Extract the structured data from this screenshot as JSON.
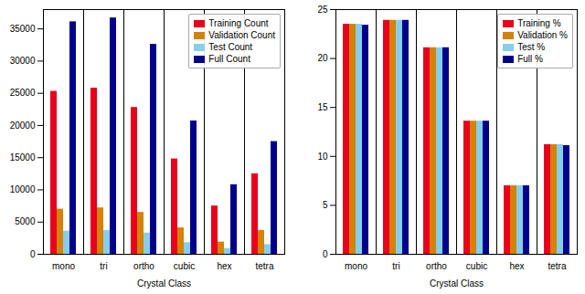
{
  "chart_data": [
    {
      "type": "bar",
      "xlabel": "Crystal Class",
      "categories": [
        "mono",
        "tri",
        "ortho",
        "cubic",
        "hex",
        "tetra"
      ],
      "series": [
        {
          "name": "Training Count",
          "color": "#e8001c",
          "values": [
            25300,
            25800,
            22800,
            14800,
            7500,
            12500
          ]
        },
        {
          "name": "Validation Count",
          "color": "#d4820a",
          "values": [
            7000,
            7200,
            6500,
            4100,
            1900,
            3700
          ]
        },
        {
          "name": "Test Count",
          "color": "#87ceeb",
          "values": [
            3600,
            3700,
            3300,
            1800,
            900,
            1500
          ]
        },
        {
          "name": "Full Count",
          "color": "#00008b",
          "values": [
            36100,
            36700,
            32600,
            20700,
            10800,
            17500
          ]
        }
      ],
      "ylim": [
        0,
        38000
      ],
      "yticks": [
        0,
        5000,
        10000,
        15000,
        20000,
        25000,
        30000,
        35000
      ],
      "legend": "upper right"
    },
    {
      "type": "bar",
      "xlabel": "Crystal Class",
      "categories": [
        "mono",
        "tri",
        "ortho",
        "cubic",
        "hex",
        "tetra"
      ],
      "series": [
        {
          "name": "Training %",
          "color": "#e8001c",
          "values": [
            23.5,
            23.9,
            21.1,
            13.6,
            7.0,
            11.2
          ]
        },
        {
          "name": "Validation %",
          "color": "#d4820a",
          "values": [
            23.5,
            23.9,
            21.1,
            13.6,
            7.0,
            11.2
          ]
        },
        {
          "name": "Test %",
          "color": "#87ceeb",
          "values": [
            23.5,
            23.9,
            21.1,
            13.6,
            7.0,
            11.2
          ]
        },
        {
          "name": "Full %",
          "color": "#00008b",
          "values": [
            23.4,
            23.9,
            21.1,
            13.6,
            7.0,
            11.1
          ]
        }
      ],
      "ylim": [
        0,
        25
      ],
      "yticks": [
        0,
        5,
        10,
        15,
        20,
        25
      ],
      "legend": "upper right"
    }
  ]
}
